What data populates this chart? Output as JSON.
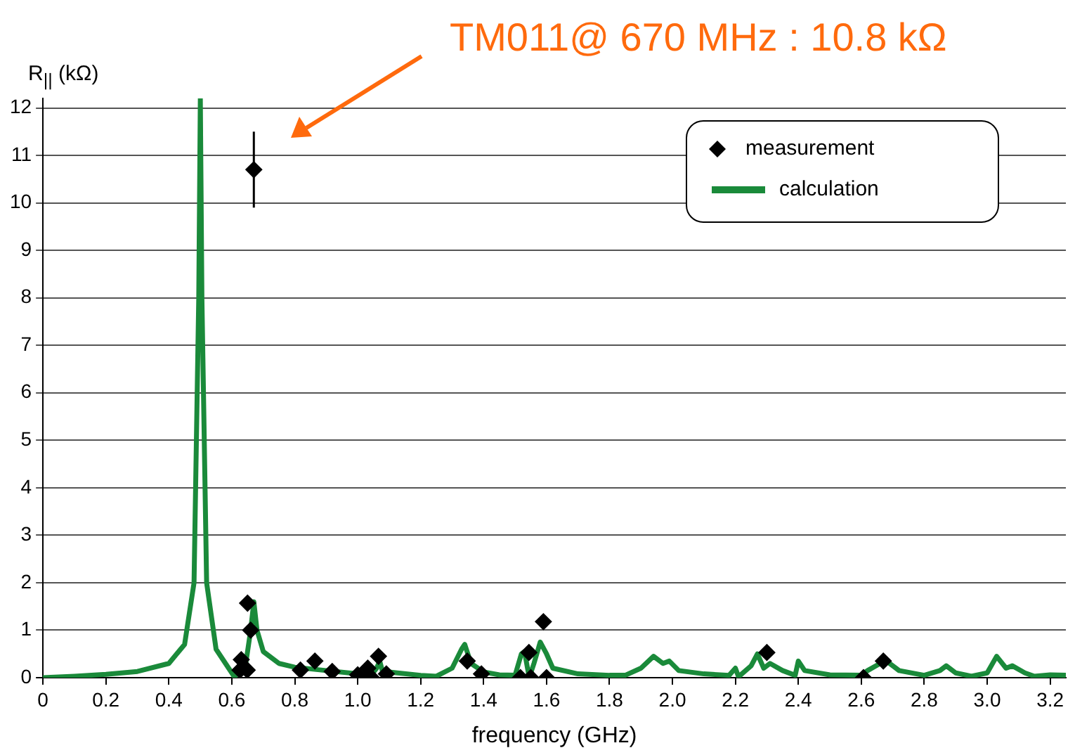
{
  "chart_data": {
    "type": "scatter",
    "xlabel": "frequency (GHz)",
    "ylabel": "R$_{||}$ (kΩ)",
    "annotations": [
      "TM011@ 670 MHz : 10.8 kΩ"
    ],
    "xlim": [
      0,
      3.25
    ],
    "xticks": [
      {
        "value": 0,
        "label": "0"
      },
      0.2,
      0.4,
      0.6,
      0.8,
      {
        "value": 1,
        "label": "1.0"
      },
      1.2,
      1.4,
      1.6,
      1.8,
      {
        "value": 2,
        "label": "2.0"
      },
      2.2,
      2.4,
      2.6,
      2.8,
      {
        "value": 3,
        "label": "3.0"
      },
      3.2
    ],
    "ylim": [
      0,
      12.2
    ],
    "yticks": [
      0,
      1,
      2,
      3,
      4,
      5,
      6,
      7,
      8,
      9,
      10,
      11,
      12
    ],
    "grid": "y",
    "legend": "top right",
    "series": [
      {
        "name": "measurement",
        "marker": "diamond",
        "color": "#000000",
        "x": [
          0.67,
          0.65,
          0.66,
          0.63,
          0.626,
          0.649,
          0.818,
          0.864,
          0.919,
          1.0,
          1.032,
          1.044,
          1.066,
          1.091,
          1.348,
          1.393,
          1.517,
          1.544,
          1.55,
          1.6,
          1.59,
          2.3,
          2.607,
          2.67
        ],
        "values": [
          10.7,
          1.57,
          1.0,
          0.38,
          0.16,
          0.16,
          0.16,
          0.35,
          0.13,
          0.06,
          0.2,
          0,
          0.45,
          0.08,
          0.35,
          0.08,
          0,
          0.53,
          0,
          0,
          1.18,
          0.53,
          0,
          0.35
        ],
        "errors": [
          [
            9.9,
            11.5
          ],
          null,
          null,
          null,
          null,
          null,
          null,
          null,
          null,
          null,
          null,
          null,
          null,
          null,
          null,
          null,
          null,
          null,
          null,
          null,
          null,
          null,
          null,
          null
        ]
      },
      {
        "name": "calculation",
        "type": "line",
        "marker": "none",
        "line_style": "solid",
        "color": "#1a8a3a",
        "x": [
          0,
          0.1,
          0.2,
          0.3,
          0.4,
          0.45,
          0.48,
          0.495,
          0.5,
          0.505,
          0.52,
          0.55,
          0.6,
          0.61,
          0.62,
          0.63,
          0.64,
          0.66,
          0.67,
          0.68,
          0.7,
          0.75,
          0.8,
          0.9,
          1.0,
          1.04,
          1.06,
          1.07,
          1.08,
          1.1,
          1.2,
          1.25,
          1.3,
          1.33,
          1.34,
          1.36,
          1.4,
          1.45,
          1.5,
          1.52,
          1.53,
          1.545,
          1.56,
          1.58,
          1.6,
          1.62,
          1.7,
          1.8,
          1.85,
          1.9,
          1.94,
          1.97,
          1.99,
          2.02,
          2.1,
          2.18,
          2.2,
          2.21,
          2.25,
          2.27,
          2.29,
          2.31,
          2.35,
          2.39,
          2.4,
          2.42,
          2.5,
          2.6,
          2.62,
          2.66,
          2.68,
          2.72,
          2.8,
          2.85,
          2.87,
          2.9,
          2.95,
          3.0,
          3.03,
          3.06,
          3.08,
          3.12,
          3.15,
          3.2,
          3.25
        ],
        "values": [
          0,
          0.03,
          0.07,
          0.13,
          0.3,
          0.7,
          2,
          8,
          12.2,
          8,
          2,
          0.6,
          0.1,
          0,
          0.2,
          0.3,
          0.1,
          1.0,
          1.6,
          1.0,
          0.55,
          0.3,
          0.22,
          0.15,
          0.08,
          0.03,
          0.2,
          0.35,
          0.1,
          0.12,
          0.05,
          0.03,
          0.2,
          0.6,
          0.7,
          0.3,
          0.12,
          0.06,
          0.05,
          0.5,
          0.55,
          0,
          0.3,
          0.75,
          0.5,
          0.2,
          0.08,
          0.05,
          0.05,
          0.2,
          0.45,
          0.3,
          0.35,
          0.15,
          0.08,
          0.05,
          0.2,
          0.02,
          0.25,
          0.5,
          0.2,
          0.3,
          0.15,
          0.05,
          0.35,
          0.15,
          0.06,
          0.05,
          0.15,
          0.3,
          0.35,
          0.15,
          0.05,
          0.15,
          0.25,
          0.1,
          0.03,
          0.1,
          0.45,
          0.2,
          0.25,
          0.1,
          0.03,
          0.06,
          0.05
        ]
      }
    ]
  }
}
